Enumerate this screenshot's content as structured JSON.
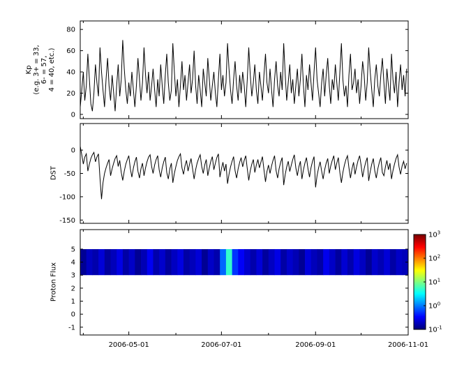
{
  "figure": {
    "background": "#ffffff",
    "axis_color": "#000000"
  },
  "xaxis": {
    "tick_labels": [
      "2006-05-01",
      "2006-07-01",
      "2006-09-01",
      "2006-11-01"
    ],
    "tick_days": [
      32,
      93,
      155,
      216
    ],
    "minor_tick_days": [
      2,
      63,
      124,
      185
    ],
    "start_day": 0,
    "end_day": 216
  },
  "colorbar": {
    "base": "10",
    "exponents": [
      3,
      2,
      1,
      0,
      -1
    ],
    "colormap": "jet",
    "orientation": "vertical"
  },
  "chart_data": [
    {
      "id": "kp",
      "type": "line",
      "ylabel_lines": [
        "Kp",
        "(e.g. 3+ = 33,",
        "6- = 57,",
        "4 = 40, etc.)"
      ],
      "ylim": [
        -4,
        88
      ],
      "yticks": [
        0,
        20,
        40,
        60,
        80
      ],
      "line_color": "#000000",
      "x_step_days": 1,
      "values": [
        7,
        23,
        40,
        13,
        27,
        57,
        33,
        10,
        3,
        20,
        47,
        30,
        17,
        63,
        40,
        23,
        7,
        33,
        53,
        27,
        13,
        37,
        20,
        3,
        27,
        47,
        17,
        33,
        70,
        43,
        23,
        10,
        30,
        17,
        40,
        23,
        7,
        27,
        53,
        33,
        13,
        30,
        63,
        37,
        20,
        40,
        13,
        27,
        43,
        23,
        7,
        33,
        17,
        47,
        27,
        10,
        37,
        57,
        30,
        13,
        23,
        67,
        40,
        17,
        33,
        7,
        27,
        50,
        23,
        37,
        13,
        30,
        47,
        20,
        33,
        60,
        27,
        10,
        37,
        23,
        7,
        43,
        30,
        17,
        53,
        33,
        13,
        27,
        40,
        20,
        7,
        33,
        57,
        23,
        37,
        17,
        30,
        67,
        43,
        23,
        10,
        33,
        50,
        27,
        13,
        37,
        20,
        40,
        27,
        7,
        33,
        63,
        37,
        17,
        30,
        47,
        23,
        10,
        40,
        27,
        13,
        37,
        57,
        30,
        20,
        43,
        23,
        7,
        33,
        50,
        27,
        17,
        40,
        23,
        67,
        37,
        13,
        30,
        47,
        20,
        33,
        10,
        27,
        43,
        17,
        33,
        57,
        27,
        7,
        37,
        23,
        47,
        30,
        13,
        40,
        63,
        33,
        20,
        7,
        30,
        43,
        17,
        37,
        53,
        27,
        10,
        33,
        23,
        47,
        30,
        13,
        40,
        67,
        33,
        17,
        27,
        7,
        37,
        57,
        23,
        30,
        43,
        20,
        33,
        10,
        27,
        50,
        37,
        13,
        30,
        63,
        40,
        23,
        7,
        33,
        47,
        27,
        17,
        37,
        53,
        30,
        10,
        43,
        27,
        13,
        57,
        33,
        20,
        40,
        7,
        30,
        47,
        23,
        37,
        17,
        43
      ]
    },
    {
      "id": "dst",
      "type": "line",
      "ylabel": "DST",
      "ylim": [
        -157,
        57
      ],
      "yticks": [
        0,
        -50,
        -100,
        -150
      ],
      "line_color": "#000000",
      "x_step_days": 1,
      "values": [
        8,
        -10,
        -30,
        -15,
        -8,
        -45,
        -30,
        -18,
        -10,
        -5,
        -25,
        -15,
        -8,
        -60,
        -105,
        -70,
        -50,
        -38,
        -28,
        -20,
        -55,
        -40,
        -28,
        -18,
        -12,
        -35,
        -22,
        -48,
        -65,
        -45,
        -30,
        -20,
        -12,
        -40,
        -58,
        -38,
        -25,
        -15,
        -45,
        -60,
        -40,
        -28,
        -55,
        -38,
        -25,
        -15,
        -10,
        -35,
        -50,
        -32,
        -20,
        -12,
        -42,
        -58,
        -38,
        -25,
        -15,
        -48,
        -62,
        -40,
        -28,
        -70,
        -50,
        -35,
        -22,
        -14,
        -8,
        -38,
        -52,
        -34,
        -22,
        -45,
        -30,
        -18,
        -40,
        -62,
        -42,
        -28,
        -18,
        -10,
        -35,
        -50,
        -32,
        -20,
        -55,
        -38,
        -24,
        -14,
        -42,
        -28,
        -16,
        -8,
        -58,
        -40,
        -26,
        -45,
        -30,
        -72,
        -52,
        -36,
        -24,
        -14,
        -44,
        -60,
        -40,
        -26,
        -16,
        -36,
        -22,
        -12,
        -40,
        -65,
        -44,
        -30,
        -20,
        -48,
        -32,
        -20,
        -38,
        -26,
        -14,
        -42,
        -68,
        -46,
        -32,
        -50,
        -34,
        -22,
        -12,
        -44,
        -60,
        -40,
        -26,
        -16,
        -75,
        -52,
        -36,
        -24,
        -46,
        -32,
        -20,
        -10,
        -38,
        -55,
        -36,
        -24,
        -62,
        -42,
        -28,
        -16,
        -40,
        -58,
        -38,
        -24,
        -14,
        -80,
        -55,
        -38,
        -25,
        -45,
        -62,
        -42,
        -28,
        -18,
        -50,
        -34,
        -22,
        -12,
        -42,
        -28,
        -16,
        -48,
        -70,
        -48,
        -32,
        -20,
        -12,
        -38,
        -60,
        -40,
        -26,
        -52,
        -36,
        -22,
        -12,
        -32,
        -58,
        -40,
        -26,
        -16,
        -66,
        -46,
        -30,
        -18,
        -44,
        -60,
        -40,
        -26,
        -16,
        -48,
        -55,
        -36,
        -22,
        -42,
        -28,
        -62,
        -44,
        -30,
        -18,
        -10,
        -36,
        -52,
        -34,
        -24,
        -40,
        -28
      ]
    },
    {
      "id": "proton_flux",
      "type": "heatmap",
      "ylabel": "Proton Flux",
      "ylim": [
        -1.6,
        6.5
      ],
      "yticks": [
        -1,
        0,
        1,
        2,
        3,
        4,
        5
      ],
      "band_y": [
        3,
        5
      ],
      "scale": "log10",
      "clim": [
        0.1,
        1000
      ],
      "colormap": "jet",
      "columns_step_days": 4,
      "values": [
        0.12,
        0.18,
        0.15,
        0.22,
        0.13,
        0.17,
        0.25,
        0.14,
        0.19,
        0.12,
        0.16,
        0.28,
        0.15,
        0.2,
        0.13,
        0.18,
        0.24,
        0.14,
        0.17,
        0.22,
        0.12,
        0.19,
        0.15,
        0.8,
        5,
        0.5,
        0.3,
        0.2,
        0.15,
        0.22,
        0.13,
        0.18,
        0.25,
        0.14,
        0.2,
        0.16,
        0.12,
        0.23,
        0.17,
        0.14,
        0.27,
        0.19,
        0.13,
        0.21,
        0.15,
        0.24,
        0.18,
        0.12,
        0.2,
        0.16,
        0.22,
        0.14,
        0.19,
        0.17
      ]
    }
  ]
}
